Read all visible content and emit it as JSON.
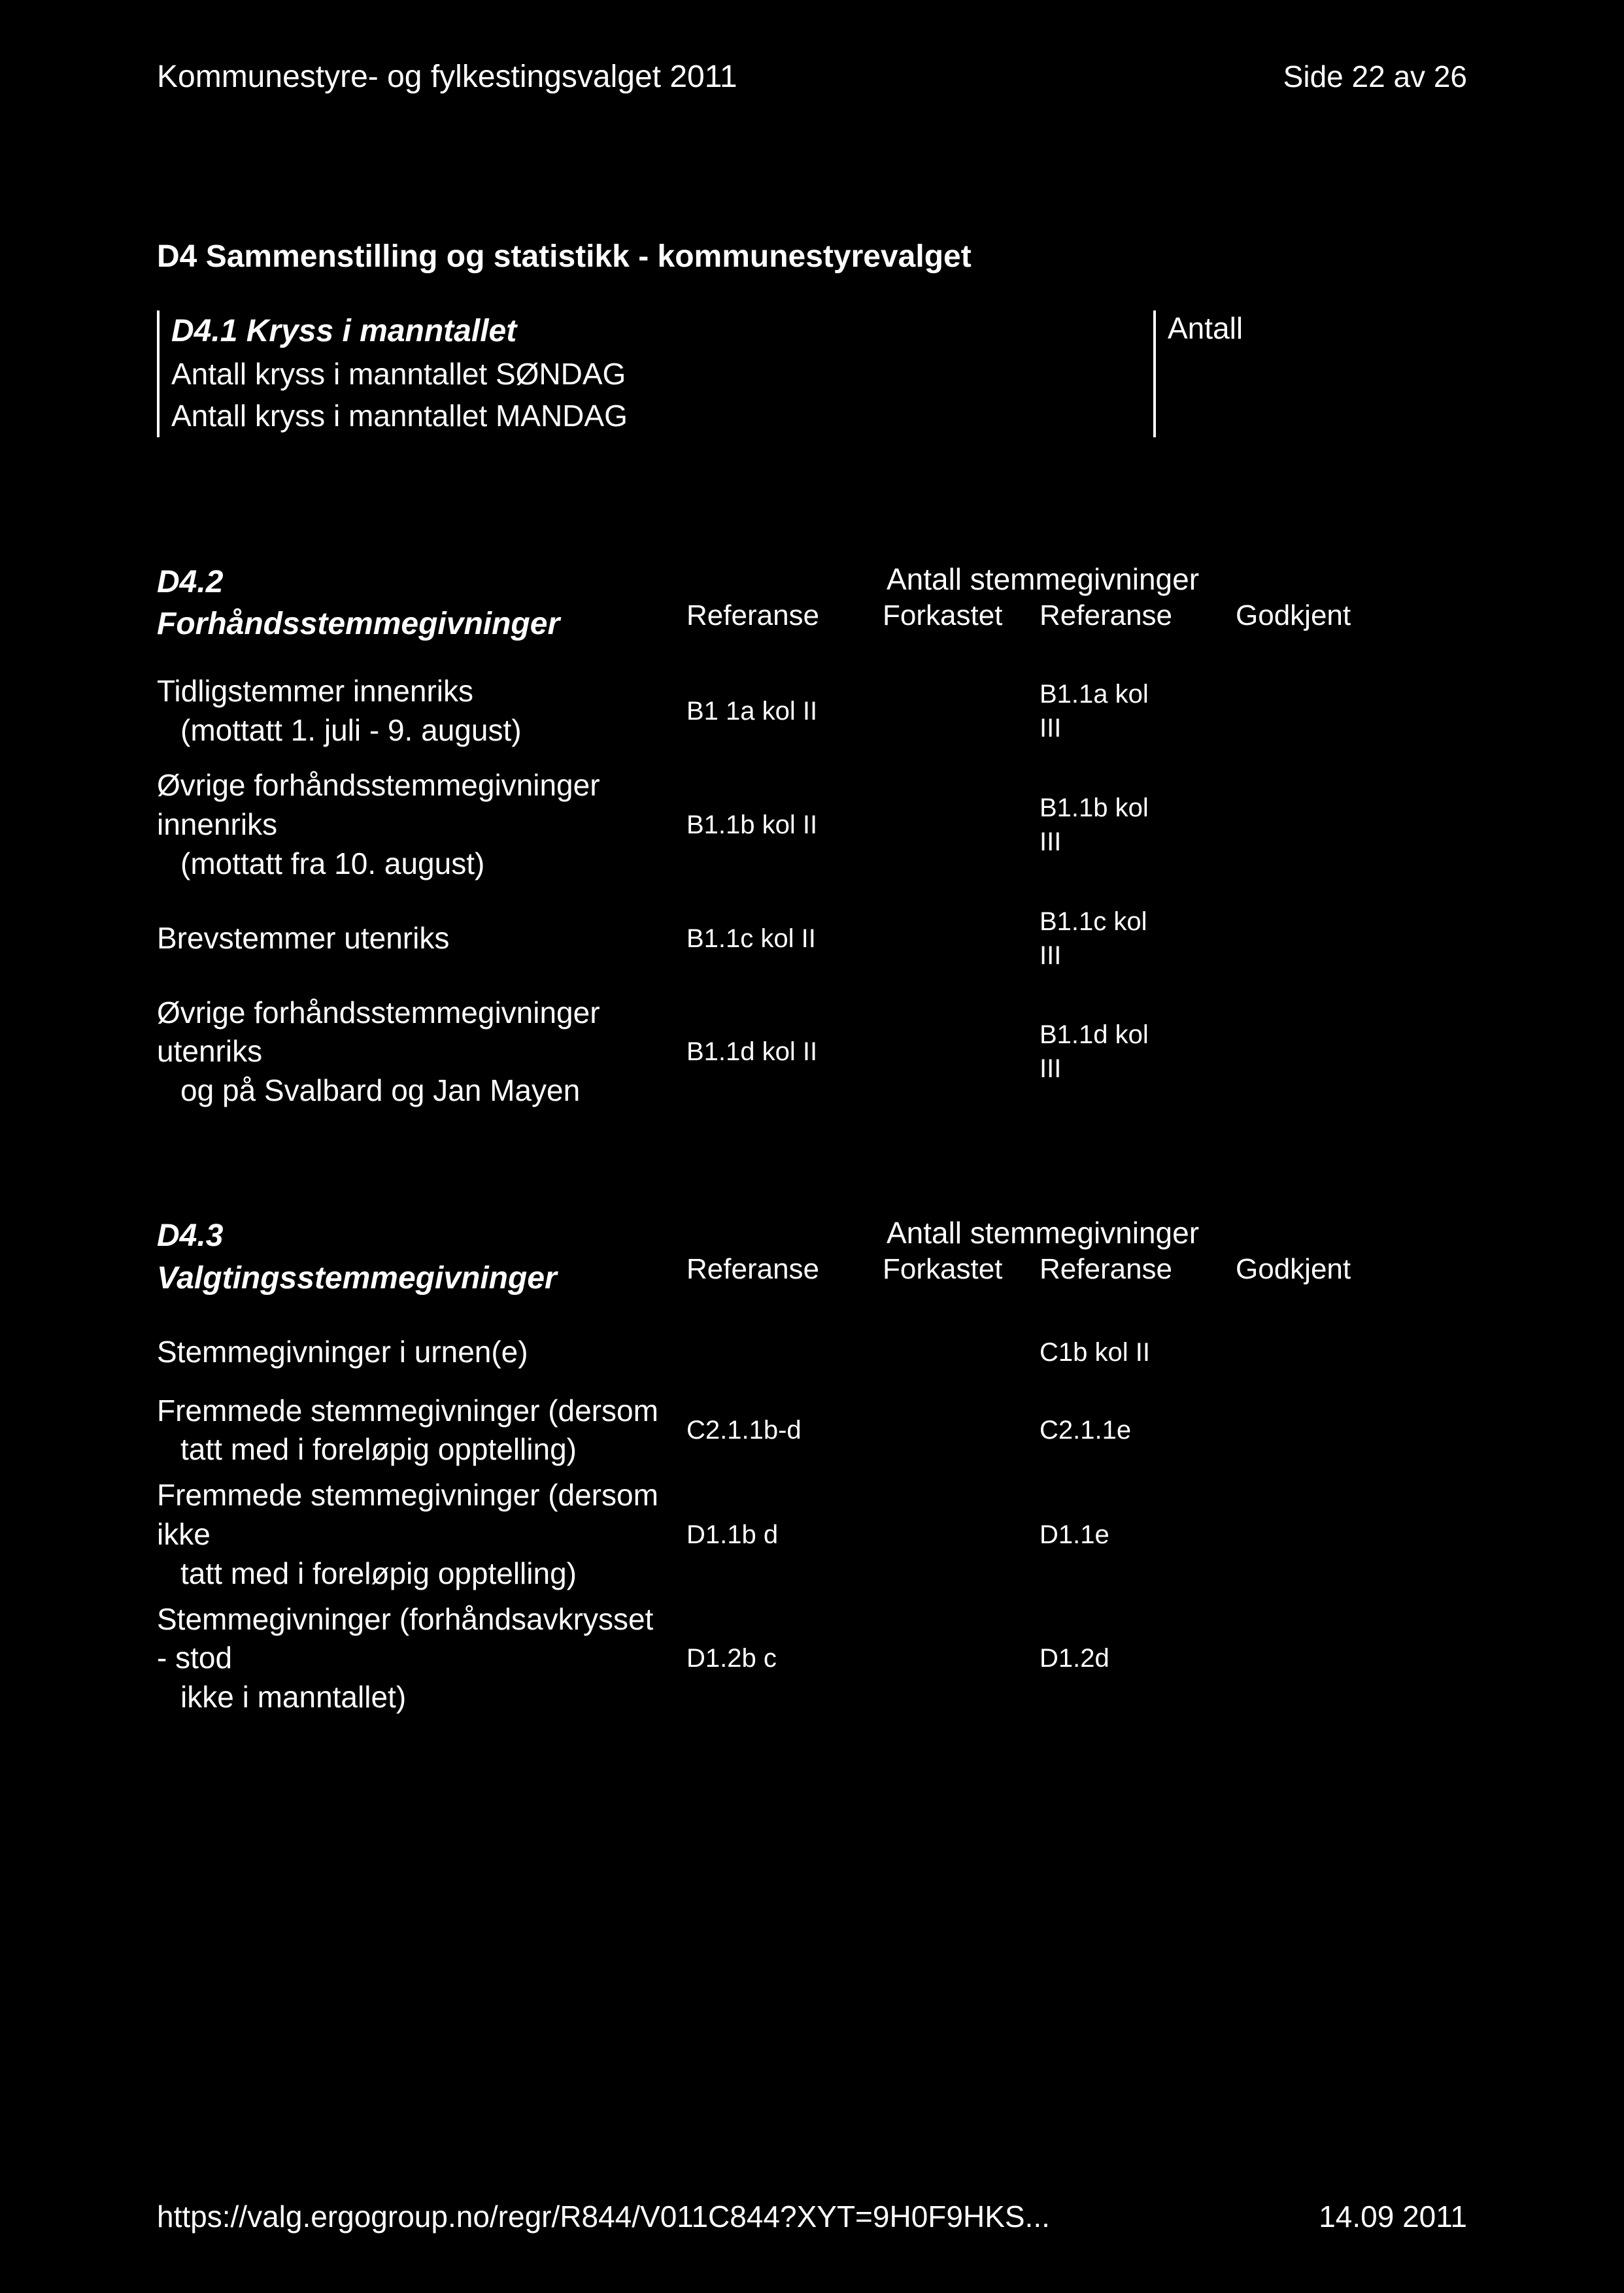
{
  "header": {
    "title": "Kommunestyre- og fylkestingsvalget 2011",
    "page": "Side 22 av 26"
  },
  "section_title": "D4 Sammenstilling og statistikk - kommunestyrevalget",
  "d41": {
    "title": "D4.1 Kryss i manntallet",
    "line1": "Antall kryss i manntallet SØNDAG",
    "line2": "Antall kryss i manntallet MANDAG",
    "right_label": "Antall"
  },
  "d42": {
    "num": "D4.2",
    "title": "Forhåndsstemmegivninger",
    "super_header": "Antall stemmegivninger",
    "col_ref1": "Referanse",
    "col_fork": "Forkastet",
    "col_ref2": "Referanse",
    "col_god": "Godkjent",
    "rows": [
      {
        "label_main": "Tidligstemmer innenriks",
        "label_sub": "(mottatt 1. juli - 9. august)",
        "ref1": "B1 1a kol II",
        "ref2a": "B1.1a kol",
        "ref2b": "III"
      },
      {
        "label_main": "Øvrige forhåndsstemmegivninger innenriks",
        "label_sub": "(mottatt fra 10. august)",
        "ref1": "B1.1b kol II",
        "ref2a": "B1.1b kol",
        "ref2b": "III"
      },
      {
        "label_main": "Brevstemmer utenriks",
        "label_sub": "",
        "ref1": "B1.1c kol II",
        "ref2a": "B1.1c kol",
        "ref2b": "III"
      },
      {
        "label_main": "Øvrige forhåndsstemmegivninger utenriks",
        "label_sub": "og på Svalbard og Jan Mayen",
        "ref1": "B1.1d kol II",
        "ref2a": "B1.1d kol",
        "ref2b": "III"
      }
    ]
  },
  "d43": {
    "num": "D4.3",
    "title": "Valgtingsstemmegivninger",
    "super_header": "Antall stemmegivninger",
    "col_ref1": "Referanse",
    "col_fork": "Forkastet",
    "col_ref2": "Referanse",
    "col_god": "Godkjent",
    "rows": [
      {
        "label_main": "Stemmegivninger i urnen(e)",
        "label_sub": "",
        "ref1": "",
        "ref2": "C1b kol II"
      },
      {
        "label_main": "Fremmede stemmegivninger (dersom",
        "label_sub": "tatt med i foreløpig opptelling)",
        "ref1": "C2.1.1b-d",
        "ref2": "C2.1.1e"
      },
      {
        "label_main": "Fremmede stemmegivninger (dersom ikke",
        "label_sub": "tatt med i foreløpig opptelling)",
        "ref1": "D1.1b d",
        "ref2": "D1.1e"
      },
      {
        "label_main": "Stemmegivninger (forhåndsavkrysset - stod",
        "label_sub": "ikke i manntallet)",
        "ref1": "D1.2b c",
        "ref2": "D1.2d"
      }
    ]
  },
  "footer": {
    "url": "https://valg.ergogroup.no/regr/R844/V011C844?XYT=9H0F9HKS...",
    "date": "14.09 2011"
  }
}
